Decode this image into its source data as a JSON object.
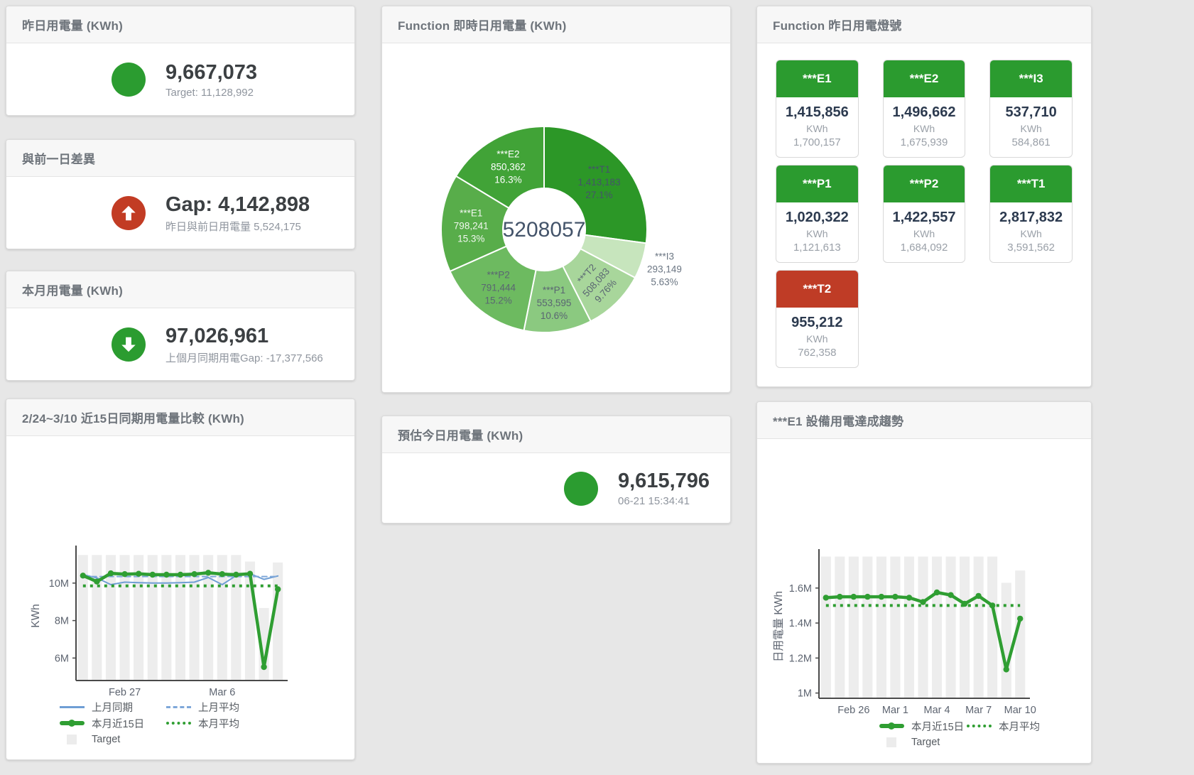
{
  "colors": {
    "green": "#2b9c30",
    "red": "#c23c24",
    "bar_gray": "#ededed",
    "blue_line": "#6f9ed4",
    "green_line": "#2f9e32"
  },
  "cards": {
    "yesterday": {
      "title": "昨日用電量 (KWh)",
      "value": "9,667,073",
      "subtitle": "Target: 11,128,992",
      "status_color": "#2b9c30"
    },
    "gap_prev": {
      "title": "與前一日差異",
      "value": "Gap: 4,142,898",
      "subtitle": "昨日與前日用電量 5,524,175",
      "status_color": "#c23c24",
      "direction": "up"
    },
    "month": {
      "title": "本月用電量 (KWh)",
      "value": "97,026,961",
      "subtitle": "上個月同期用電Gap: -17,377,566",
      "status_color": "#2b9c30",
      "direction": "down"
    },
    "estimate": {
      "title": "預估今日用電量 (KWh)",
      "value": "9,615,796",
      "subtitle": "06-21 15:34:41",
      "status_color": "#2b9c30"
    },
    "donut": {
      "title": "Function 即時日用電量 (KWh)"
    },
    "compare": {
      "title": "2/24~3/10 近15日同期用電量比較 (KWh)"
    },
    "trend": {
      "title": "***E1 設備用電達成趨勢"
    },
    "lights": {
      "title": "Function 昨日用電燈號",
      "unit": "KWh",
      "tiles": [
        {
          "name": "***E1",
          "value": "1,415,856",
          "target": "1,700,157",
          "status": "green"
        },
        {
          "name": "***E2",
          "value": "1,496,662",
          "target": "1,675,939",
          "status": "green"
        },
        {
          "name": "***I3",
          "value": "537,710",
          "target": "584,861",
          "status": "green"
        },
        {
          "name": "***P1",
          "value": "1,020,322",
          "target": "1,121,613",
          "status": "green"
        },
        {
          "name": "***P2",
          "value": "1,422,557",
          "target": "1,684,092",
          "status": "green"
        },
        {
          "name": "***T1",
          "value": "2,817,832",
          "target": "3,591,562",
          "status": "green"
        },
        {
          "name": "***T2",
          "value": "955,212",
          "target": "762,358",
          "status": "red"
        }
      ]
    }
  },
  "chart_data": [
    {
      "id": "function_realtime_donut",
      "type": "pie",
      "title": "Function 即時日用電量 (KWh)",
      "center_label": "5208057",
      "total": 5208057,
      "slices": [
        {
          "name": "***T1",
          "value": 1413183,
          "pct_label": "27.1%",
          "color": "#2c9727",
          "label_color": "#44546a"
        },
        {
          "name": "***I3",
          "value": 293149,
          "pct_label": "5.63%",
          "color": "#c7e5bd",
          "label_color": "#6b7683",
          "label_outside": true
        },
        {
          "name": "***T2",
          "value": 508083,
          "pct_label": "9.76%",
          "color": "#a8d69b",
          "label_color": "#5a6572",
          "label_rotate": -48
        },
        {
          "name": "***P1",
          "value": 553595,
          "pct_label": "10.6%",
          "color": "#8bc980",
          "label_color": "#5a6572"
        },
        {
          "name": "***P2",
          "value": 791444,
          "pct_label": "15.2%",
          "color": "#6dba60",
          "label_color": "#5a6572"
        },
        {
          "name": "***E1",
          "value": 798241,
          "pct_label": "15.3%",
          "color": "#58ad4a",
          "label_color": "#f2f7f0"
        },
        {
          "name": "***E2",
          "value": 850362,
          "pct_label": "16.3%",
          "color": "#41a337",
          "label_color": "#ffffff"
        }
      ]
    },
    {
      "id": "compare_15day",
      "type": "line",
      "title": "2/24~3/10 近15日同期用電量比較 (KWh)",
      "ylabel": "KWh",
      "unit": "M KWh",
      "categories": [
        "Feb 24",
        "Feb 25",
        "Feb 26",
        "Feb 27",
        "Feb 28",
        "Mar 1",
        "Mar 2",
        "Mar 3",
        "Mar 4",
        "Mar 5",
        "Mar 6",
        "Mar 7",
        "Mar 8",
        "Mar 9",
        "Mar 10"
      ],
      "x_ticks": [
        {
          "index": 3,
          "label": "Feb 27"
        },
        {
          "index": 10,
          "label": "Mar 6"
        }
      ],
      "y_ticks": [
        {
          "value": 6,
          "label": "6M"
        },
        {
          "value": 8,
          "label": "8M"
        },
        {
          "value": 10,
          "label": "10M"
        }
      ],
      "ylim": [
        4.8,
        11.7
      ],
      "grid": false,
      "legend_position": "bottom",
      "series": [
        {
          "name": "Target",
          "type": "bar",
          "color": "#ededed",
          "values": [
            11.5,
            11.5,
            11.5,
            11.5,
            11.5,
            11.5,
            11.5,
            11.5,
            11.5,
            11.5,
            11.5,
            11.5,
            11.15,
            8.67,
            11.1
          ]
        },
        {
          "name": "上月同期",
          "type": "line",
          "style": "solid",
          "color": "#6f9ed4",
          "width": 2,
          "values": [
            10.45,
            10.28,
            9.92,
            10.05,
            10.02,
            10.0,
            10.0,
            10.02,
            10.05,
            10.3,
            9.92,
            10.4,
            10.5,
            10.2,
            10.38
          ]
        },
        {
          "name": "上月平均",
          "type": "line",
          "style": "dashed",
          "color": "#7fa8d9",
          "width": 2,
          "values": [
            10.35,
            10.35,
            10.35,
            10.35,
            10.35,
            10.35,
            10.35,
            10.35,
            10.35,
            10.35,
            10.35,
            10.35,
            10.35,
            10.35,
            10.35
          ]
        },
        {
          "name": "本月近15日",
          "type": "line",
          "style": "solid",
          "color": "#2f9e32",
          "width": 4.5,
          "marker": true,
          "values": [
            10.4,
            10.08,
            10.52,
            10.48,
            10.5,
            10.45,
            10.45,
            10.45,
            10.48,
            10.55,
            10.48,
            10.45,
            10.5,
            5.52,
            9.67
          ]
        },
        {
          "name": "本月平均",
          "type": "line",
          "style": "dotted",
          "color": "#2f9e32",
          "width": 4,
          "values": [
            9.85,
            9.85,
            9.85,
            9.85,
            9.85,
            9.85,
            9.85,
            9.85,
            9.85,
            9.85,
            9.85,
            9.85,
            9.85,
            9.85,
            9.85
          ]
        }
      ],
      "legend": [
        "上月同期",
        "上月平均",
        "本月近15日",
        "本月平均",
        "Target"
      ]
    },
    {
      "id": "e1_trend",
      "type": "line",
      "title": "***E1 設備用電達成趨勢",
      "ylabel": "日用電量 KWh",
      "unit": "M KWh",
      "categories": [
        "Feb 24",
        "Feb 25",
        "Feb 26",
        "Feb 27",
        "Feb 28",
        "Mar 1",
        "Mar 2",
        "Mar 3",
        "Mar 4",
        "Mar 5",
        "Mar 6",
        "Mar 7",
        "Mar 8",
        "Mar 9",
        "Mar 10"
      ],
      "x_ticks": [
        {
          "index": 2,
          "label": "Feb 26"
        },
        {
          "index": 5,
          "label": "Mar 1"
        },
        {
          "index": 8,
          "label": "Mar 4"
        },
        {
          "index": 11,
          "label": "Mar 7"
        },
        {
          "index": 14,
          "label": "Mar 10"
        }
      ],
      "y_ticks": [
        {
          "value": 1.0,
          "label": "1M"
        },
        {
          "value": 1.2,
          "label": "1.2M"
        },
        {
          "value": 1.4,
          "label": "1.4M"
        },
        {
          "value": 1.6,
          "label": "1.6M"
        }
      ],
      "ylim": [
        0.97,
        1.79
      ],
      "grid": false,
      "legend_position": "bottom",
      "series": [
        {
          "name": "Target",
          "type": "bar",
          "color": "#ededed",
          "values": [
            1.78,
            1.78,
            1.78,
            1.78,
            1.78,
            1.78,
            1.78,
            1.78,
            1.78,
            1.78,
            1.78,
            1.78,
            1.78,
            1.63,
            1.7
          ]
        },
        {
          "name": "本月近15日",
          "type": "line",
          "style": "solid",
          "color": "#2f9e32",
          "width": 4.5,
          "marker": true,
          "values": [
            1.545,
            1.55,
            1.55,
            1.55,
            1.55,
            1.55,
            1.545,
            1.52,
            1.575,
            1.56,
            1.51,
            1.555,
            1.5,
            1.135,
            1.425
          ]
        },
        {
          "name": "本月平均",
          "type": "line",
          "style": "dotted",
          "color": "#2f9e32",
          "width": 4,
          "values": [
            1.5,
            1.5,
            1.5,
            1.5,
            1.5,
            1.5,
            1.5,
            1.5,
            1.5,
            1.5,
            1.5,
            1.5,
            1.5,
            1.5,
            1.5
          ]
        }
      ],
      "legend": [
        "本月近15日",
        "本月平均",
        "Target"
      ]
    }
  ]
}
